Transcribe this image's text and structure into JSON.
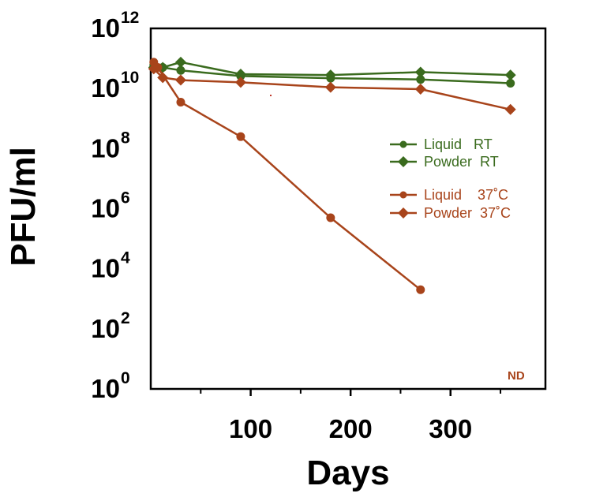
{
  "chart_data": {
    "type": "line",
    "xlabel": "Days",
    "ylabel": "PFU/ml",
    "y_scale": "log10",
    "xlim": [
      0,
      395
    ],
    "ylim": [
      1,
      1000000000000
    ],
    "x_ticks": [
      100,
      200,
      300
    ],
    "y_ticks": [
      {
        "base": "10",
        "exp": "0",
        "value": 1
      },
      {
        "base": "10",
        "exp": "2",
        "value": 100
      },
      {
        "base": "10",
        "exp": "4",
        "value": 10000
      },
      {
        "base": "10",
        "exp": "6",
        "value": 1000000
      },
      {
        "base": "10",
        "exp": "8",
        "value": 100000000
      },
      {
        "base": "10",
        "exp": "10",
        "value": 10000000000
      },
      {
        "base": "10",
        "exp": "12",
        "value": 1000000000000
      }
    ],
    "grid": false,
    "legend_position": "right-middle",
    "series": [
      {
        "name": "Liquid   RT",
        "color": "#3a6b1e",
        "marker": "circle",
        "x": [
          3,
          12,
          30,
          90,
          180,
          270,
          360
        ],
        "y": [
          60000000000.0,
          50000000000.0,
          40000000000.0,
          26000000000.0,
          22000000000.0,
          20000000000.0,
          15000000000.0
        ]
      },
      {
        "name": "Powder  RT",
        "color": "#3a6b1e",
        "marker": "diamond",
        "x": [
          3,
          12,
          30,
          90,
          180,
          270,
          360
        ],
        "y": [
          50000000000.0,
          50000000000.0,
          75000000000.0,
          30000000000.0,
          28000000000.0,
          35000000000.0,
          28000000000.0
        ]
      },
      {
        "name": "Liquid    37˚C",
        "color": "#a8441b",
        "marker": "circle",
        "x": [
          3,
          7,
          30,
          90,
          180,
          270
        ],
        "y": [
          75000000000.0,
          50000000000.0,
          3500000000.0,
          250000000.0,
          500000.0,
          2000.0
        ]
      },
      {
        "name": "Powder  37˚C",
        "color": "#a8441b",
        "marker": "diamond",
        "x": [
          3,
          12,
          30,
          90,
          180,
          270,
          360
        ],
        "y": [
          45000000000.0,
          23000000000.0,
          19000000000.0,
          16000000000.0,
          11000000000.0,
          9500000000.0,
          2000000000.0
        ]
      }
    ],
    "annotations": [
      "ND"
    ]
  }
}
